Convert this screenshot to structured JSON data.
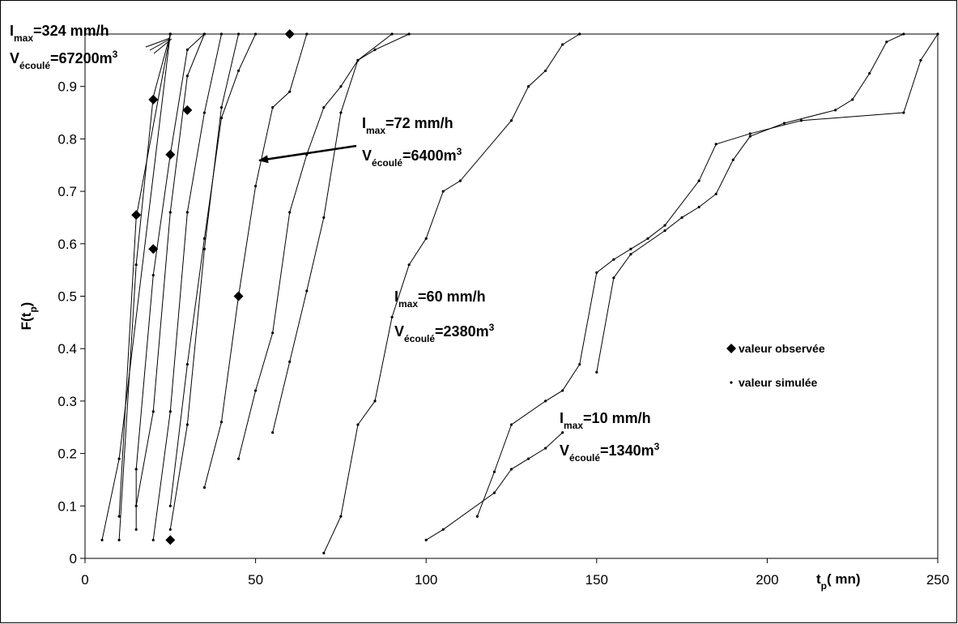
{
  "chart_data": {
    "type": "line",
    "x_label": [
      {
        "text": "t"
      },
      {
        "text": "p",
        "shift": "sub"
      },
      {
        "text": "( mn)"
      }
    ],
    "y_label": [
      {
        "text": "F(t"
      },
      {
        "text": "p",
        "shift": "sub"
      },
      {
        "text": ")"
      }
    ],
    "xlim": [
      0,
      250
    ],
    "xticks": [
      0,
      50,
      100,
      150,
      200,
      250
    ],
    "ylim": [
      0,
      1
    ],
    "yticks": [
      0,
      0.1,
      0.2,
      0.3,
      0.4,
      0.5,
      0.6,
      0.7,
      0.8,
      0.9
    ],
    "color": "#000000",
    "legend": "right",
    "series": [
      {
        "name": "valeur observée",
        "marker": "diamond",
        "x": [
          25,
          15,
          20,
          20,
          25,
          30,
          45,
          60
        ],
        "values": [
          0.035,
          0.655,
          0.875,
          0.59,
          0.77,
          0.855,
          0.5,
          1.0
        ]
      },
      {
        "name": "valeur simulée",
        "marker": "dot",
        "lines": [
          {
            "x": [
              5,
              10,
              25
            ],
            "values": [
              0.035,
              0.19,
              1.0
            ]
          },
          {
            "x": [
              10,
              15,
              20,
              25
            ],
            "values": [
              0.035,
              0.56,
              0.88,
              1.0
            ]
          },
          {
            "x": [
              10,
              15,
              25
            ],
            "values": [
              0.08,
              0.65,
              1.0
            ]
          },
          {
            "x": [
              15,
              15,
              20,
              25,
              30,
              35
            ],
            "values": [
              0.055,
              0.17,
              0.54,
              0.77,
              0.97,
              1.0
            ]
          },
          {
            "x": [
              15,
              20,
              25,
              30,
              35
            ],
            "values": [
              0.1,
              0.28,
              0.66,
              0.92,
              1.0
            ]
          },
          {
            "x": [
              20,
              25,
              30,
              35,
              40
            ],
            "values": [
              0.035,
              0.28,
              0.66,
              0.85,
              1.0
            ]
          },
          {
            "x": [
              25,
              30,
              35,
              40,
              45
            ],
            "values": [
              0.055,
              0.255,
              0.59,
              0.86,
              1.0
            ]
          },
          {
            "x": [
              25,
              30,
              35,
              40,
              45,
              50
            ],
            "values": [
              0.1,
              0.37,
              0.61,
              0.84,
              0.93,
              1.0
            ]
          },
          {
            "x": [
              35,
              40,
              45,
              50,
              55,
              60,
              65
            ],
            "values": [
              0.135,
              0.26,
              0.5,
              0.71,
              0.86,
              0.89,
              1.0
            ]
          },
          {
            "x": [
              45,
              50,
              55,
              60,
              65,
              70,
              75,
              80,
              85,
              95
            ],
            "values": [
              0.19,
              0.32,
              0.43,
              0.66,
              0.77,
              0.86,
              0.9,
              0.95,
              0.97,
              1.0
            ]
          },
          {
            "x": [
              55,
              60,
              65,
              70,
              75,
              80,
              90
            ],
            "values": [
              0.24,
              0.375,
              0.51,
              0.65,
              0.85,
              0.95,
              1.0
            ]
          },
          {
            "x": [
              70,
              75,
              80,
              85,
              90,
              95,
              100,
              105,
              110,
              125,
              130,
              135,
              140,
              145
            ],
            "values": [
              0.01,
              0.08,
              0.255,
              0.3,
              0.46,
              0.56,
              0.61,
              0.7,
              0.72,
              0.835,
              0.9,
              0.93,
              0.98,
              1.0
            ]
          },
          {
            "x": [
              100,
              105,
              120,
              125,
              130,
              135,
              140
            ],
            "values": [
              0.035,
              0.055,
              0.125,
              0.17,
              0.19,
              0.21,
              0.24
            ]
          },
          {
            "x": [
              115,
              120,
              125,
              135,
              140,
              145,
              150,
              155,
              160,
              165,
              170,
              180,
              185,
              195,
              210,
              240,
              245,
              250
            ],
            "values": [
              0.08,
              0.165,
              0.255,
              0.3,
              0.32,
              0.37,
              0.545,
              0.57,
              0.59,
              0.61,
              0.635,
              0.72,
              0.79,
              0.81,
              0.835,
              0.85,
              0.95,
              1.0
            ]
          },
          {
            "x": [
              150,
              155,
              160,
              170,
              175,
              180,
              185,
              190,
              195,
              205,
              220,
              225,
              230,
              235,
              240
            ],
            "values": [
              0.355,
              0.535,
              0.58,
              0.625,
              0.65,
              0.67,
              0.695,
              0.76,
              0.805,
              0.83,
              0.855,
              0.875,
              0.925,
              0.985,
              1.0
            ]
          }
        ]
      }
    ],
    "annotations": [
      {
        "lines": [
          [
            {
              "text": "I"
            },
            {
              "text": "max",
              "shift": "sub"
            },
            {
              "text": "=324 mm/h"
            }
          ],
          [
            {
              "text": "V"
            },
            {
              "text": "écoulé",
              "shift": "sub"
            },
            {
              "text": "=67200m"
            },
            {
              "text": "3",
              "shift": "super"
            }
          ]
        ]
      },
      {
        "lines": [
          [
            {
              "text": "I"
            },
            {
              "text": "max",
              "shift": "sub"
            },
            {
              "text": "=72 mm/h"
            }
          ],
          [
            {
              "text": "V"
            },
            {
              "text": "écoulé",
              "shift": "sub"
            },
            {
              "text": "=6400m"
            },
            {
              "text": "3",
              "shift": "super"
            }
          ]
        ]
      },
      {
        "lines": [
          [
            {
              "text": "I"
            },
            {
              "text": "max",
              "shift": "sub"
            },
            {
              "text": "=60 mm/h"
            }
          ],
          [
            {
              "text": "V"
            },
            {
              "text": "écoulé",
              "shift": "sub"
            },
            {
              "text": "=2380m"
            },
            {
              "text": "3",
              "shift": "super"
            }
          ]
        ]
      },
      {
        "lines": [
          [
            {
              "text": "I"
            },
            {
              "text": "max",
              "shift": "sub"
            },
            {
              "text": "=10 mm/h"
            }
          ],
          [
            {
              "text": "V"
            },
            {
              "text": "écoulé",
              "shift": "sub"
            },
            {
              "text": "=1340m"
            },
            {
              "text": "3",
              "shift": "super"
            }
          ]
        ]
      }
    ]
  }
}
